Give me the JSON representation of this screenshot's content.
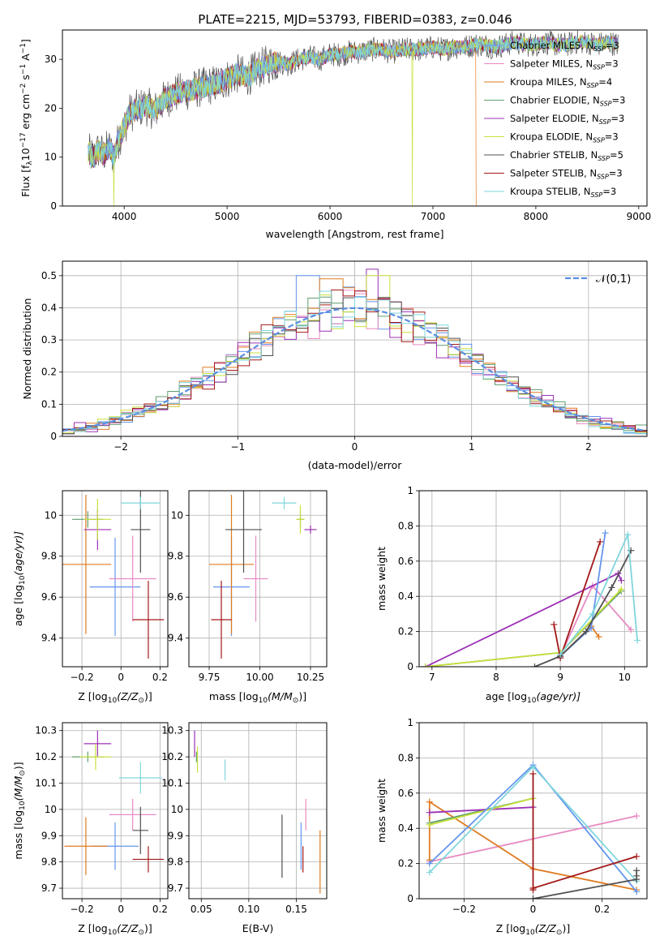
{
  "figure_title": "PLATE=2215, MJD=53793, FIBERID=0383, z=0.046",
  "model_colors": {
    "Chabrier MILES": "#6495ed",
    "Salpeter MILES": "#e78ac3",
    "Kroupa MILES": "#e07b20",
    "Chabrier ELODIE": "#5f9e6e",
    "Salpeter ELODIE": "#9b30b5",
    "Kroupa ELODIE": "#c9e03c",
    "Chabrier STELIB": "#505050",
    "Salpeter STELIB": "#a31818",
    "Kroupa STELIB": "#7fd6dc"
  },
  "chart_data": [
    {
      "id": "spectrum",
      "type": "line",
      "xlabel": "wavelength [Angstrom, rest frame]",
      "ylabel_main": "Flux [f",
      "ylabel_lambda": "λ",
      "ylabel_pre": "10",
      "ylabel_exp1": "−17",
      "ylabel_mid": " erg cm",
      "ylabel_exp2": "−2",
      "ylabel_mid2": " s",
      "ylabel_exp3": "−1",
      "ylabel_end": " A",
      "ylabel_exp4": "−1",
      "ylabel_close": "]",
      "xlim": [
        3400,
        9080
      ],
      "ylim": [
        0,
        36
      ],
      "xticks": [
        4000,
        5000,
        6000,
        7000,
        8000,
        9000
      ],
      "yticks": [
        0,
        10,
        20,
        30
      ],
      "profile_x": [
        3650,
        3700,
        3750,
        3800,
        3850,
        3900,
        3950,
        4000,
        4050,
        4100,
        4200,
        4300,
        4400,
        4500,
        4600,
        4700,
        4800,
        4900,
        5000,
        5100,
        5200,
        5300,
        5400,
        5500,
        5600,
        5700,
        5800,
        5900,
        6000,
        6100,
        6200,
        6300,
        6400,
        6500,
        6600,
        6700,
        6800,
        6900,
        7000,
        7100,
        7200,
        7300,
        7400,
        7500,
        7600,
        7700,
        7800,
        7900,
        8000,
        8100,
        8200,
        8300,
        8400,
        8500,
        8600,
        8700,
        8800
      ],
      "profile_y": [
        11,
        10,
        11.5,
        10.5,
        12,
        10,
        14,
        16,
        19,
        19.5,
        20.5,
        19.5,
        22,
        23,
        23.5,
        24,
        24.5,
        25,
        26,
        27,
        26.5,
        28,
        29,
        29.5,
        29,
        30,
        30.5,
        30,
        31,
        31,
        31.5,
        31.5,
        32,
        32,
        31.5,
        32,
        32,
        32,
        32.5,
        32,
        32.5,
        32.5,
        33,
        33,
        32.5,
        33,
        33.5,
        33,
        33,
        33.5,
        33,
        33,
        33.5,
        33.5,
        33,
        33.5,
        33
      ],
      "legend_placement": "upper right",
      "legend_entries": [
        {
          "model": "Chabrier MILES",
          "label": "Chabrier MILES, N",
          "sub": "SSP",
          "suffix": "=3"
        },
        {
          "model": "Salpeter MILES",
          "label": "Salpeter MILES, N",
          "sub": "SSP",
          "suffix": "=3"
        },
        {
          "model": "Kroupa MILES",
          "label": "Kroupa MILES, N",
          "sub": "SSP",
          "suffix": "=4"
        },
        {
          "model": "Chabrier ELODIE",
          "label": "Chabrier ELODIE, N",
          "sub": "SSP",
          "suffix": "=3"
        },
        {
          "model": "Salpeter ELODIE",
          "label": "Salpeter ELODIE, N",
          "sub": "SSP",
          "suffix": "=3"
        },
        {
          "model": "Kroupa ELODIE",
          "label": "Kroupa ELODIE, N",
          "sub": "SSP",
          "suffix": "=3"
        },
        {
          "model": "Chabrier STELIB",
          "label": "Chabrier STELIB, N",
          "sub": "SSP",
          "suffix": "=5"
        },
        {
          "model": "Salpeter STELIB",
          "label": "Salpeter STELIB, N",
          "sub": "SSP",
          "suffix": "=3"
        },
        {
          "model": "Kroupa STELIB",
          "label": "Kroupa STELIB, N",
          "sub": "SSP",
          "suffix": "=3"
        }
      ],
      "drops": [
        {
          "model": "Kroupa ELODIE",
          "x": 3900
        },
        {
          "model": "Kroupa ELODIE",
          "x": 6800
        },
        {
          "model": "Kroupa MILES",
          "x": 7420
        }
      ]
    },
    {
      "id": "residuals",
      "type": "histogram",
      "xlabel": "(data-model)/error",
      "ylabel": "Normed distribution",
      "xlim": [
        -2.5,
        2.5
      ],
      "ylim": [
        0,
        0.545
      ],
      "xticks": [
        -2,
        -1,
        0,
        1,
        2
      ],
      "yticks": [
        0.0,
        0.1,
        0.2,
        0.3,
        0.4,
        0.5
      ],
      "grid": true,
      "bin_width": 0.1,
      "reference_curve": {
        "label": "𝒩(0,1)",
        "color": "#5b8ee0",
        "style": "dashed",
        "legend_placement": "upper right"
      },
      "peak_adjust": [
        {
          "model": "Salpeter ELODIE",
          "x": 0.15,
          "y": 0.52
        },
        {
          "model": "Kroupa ELODIE",
          "x": 0.2,
          "y": 0.5
        },
        {
          "model": "Chabrier MILES",
          "x": -0.4,
          "y": 0.5
        },
        {
          "model": "Kroupa MILES",
          "x": -0.2,
          "y": 0.49
        }
      ]
    },
    {
      "id": "age-vs-Z",
      "type": "errorbar",
      "xlabel": "Z [log",
      "xlabel_sub": "10",
      "xlabel_arg": "(Z/Z",
      "xlabel_sun": "⊙",
      "xlabel_close": ")]",
      "ylabel": "age  [log",
      "ylabel_sub": "10",
      "ylabel_arg": "(age/yr)]",
      "xlim": [
        -0.3,
        0.24
      ],
      "ylim": [
        9.26,
        10.12
      ],
      "xticks": [
        -0.2,
        0.0,
        0.2
      ],
      "yticks": [
        9.4,
        9.6,
        9.8,
        10.0
      ],
      "points": [
        {
          "model": "Chabrier MILES",
          "x": -0.03,
          "y": 9.65,
          "xerr": 0.13,
          "yerr": 0.24
        },
        {
          "model": "Salpeter MILES",
          "x": 0.06,
          "y": 9.69,
          "xerr": 0.12,
          "yerr": 0.21
        },
        {
          "model": "Kroupa MILES",
          "x": -0.18,
          "y": 9.76,
          "xerr": 0.13,
          "yerr": 0.34
        },
        {
          "model": "Chabrier ELODIE",
          "x": -0.17,
          "y": 9.98,
          "xerr": 0.08,
          "yerr": 0.04
        },
        {
          "model": "Salpeter ELODIE",
          "x": -0.12,
          "y": 9.93,
          "xerr": 0.07,
          "yerr": 0.1
        },
        {
          "model": "Kroupa ELODIE",
          "x": -0.12,
          "y": 9.98,
          "xerr": 0.07,
          "yerr": 0.1
        },
        {
          "model": "Chabrier STELIB",
          "x": 0.1,
          "y": 9.93,
          "xerr": 0.05,
          "yerr": 0.21
        },
        {
          "model": "Salpeter STELIB",
          "x": 0.14,
          "y": 9.49,
          "xerr": 0.08,
          "yerr": 0.19
        },
        {
          "model": "Kroupa STELIB",
          "x": 0.1,
          "y": 10.06,
          "xerr": 0.1,
          "yerr": 0.03
        }
      ]
    },
    {
      "id": "age-vs-mass",
      "type": "errorbar",
      "xlabel": "mass [log",
      "xlabel_sub": "10",
      "xlabel_arg": "(M/M",
      "xlabel_sun": "⊙",
      "xlabel_close": ")]",
      "xlim": [
        9.65,
        10.33
      ],
      "ylim": [
        9.26,
        10.12
      ],
      "xticks": [
        9.75,
        10.0,
        10.25
      ],
      "tick_labels_x": [
        "9.75",
        "10.00",
        "10.25"
      ],
      "yticks": [
        9.4,
        9.6,
        9.8,
        10.0
      ],
      "points": [
        {
          "model": "Chabrier MILES",
          "x": 9.86,
          "y": 9.65,
          "xerr": 0.09,
          "yerr": 0.24
        },
        {
          "model": "Salpeter MILES",
          "x": 9.98,
          "y": 9.69,
          "xerr": 0.06,
          "yerr": 0.21
        },
        {
          "model": "Kroupa MILES",
          "x": 9.86,
          "y": 9.76,
          "xerr": 0.11,
          "yerr": 0.34
        },
        {
          "model": "Chabrier ELODIE",
          "x": 10.2,
          "y": 9.98,
          "xerr": 0.02,
          "yerr": 0.04
        },
        {
          "model": "Salpeter ELODIE",
          "x": 10.25,
          "y": 9.93,
          "xerr": 0.03,
          "yerr": 0.02
        },
        {
          "model": "Kroupa ELODIE",
          "x": 10.2,
          "y": 9.98,
          "xerr": 0.02,
          "yerr": 0.07
        },
        {
          "model": "Chabrier STELIB",
          "x": 9.92,
          "y": 9.93,
          "xerr": 0.09,
          "yerr": 0.21
        },
        {
          "model": "Salpeter STELIB",
          "x": 9.81,
          "y": 9.49,
          "xerr": 0.05,
          "yerr": 0.19
        },
        {
          "model": "Kroupa STELIB",
          "x": 10.12,
          "y": 10.06,
          "xerr": 0.06,
          "yerr": 0.03
        }
      ]
    },
    {
      "id": "massweight-vs-age",
      "type": "line",
      "xlabel": "age  [log",
      "xlabel_sub": "10",
      "xlabel_arg": "(age/yr)]",
      "ylabel": "mass weight",
      "xlim": [
        6.8,
        10.35
      ],
      "ylim": [
        0,
        1.0
      ],
      "xticks": [
        7,
        8,
        9,
        10
      ],
      "yticks": [
        0.0,
        0.2,
        0.4,
        0.6,
        0.8,
        1.0
      ],
      "series": [
        {
          "model": "Salpeter MILES",
          "x": [
            9.0,
            9.5,
            10.1
          ],
          "y": [
            0.06,
            0.46,
            0.21
          ]
        },
        {
          "model": "Chabrier ELODIE",
          "x": [
            6.9,
            9.0,
            9.95
          ],
          "y": [
            0.0,
            0.08,
            0.43
          ]
        },
        {
          "model": "Salpeter ELODIE",
          "x": [
            6.9,
            9.9,
            9.95
          ],
          "y": [
            0.0,
            0.53,
            0.49
          ]
        },
        {
          "model": "Kroupa ELODIE",
          "x": [
            6.9,
            9.0,
            9.95
          ],
          "y": [
            0.0,
            0.08,
            0.44
          ]
        },
        {
          "model": "Kroupa MILES",
          "x": [
            9.0,
            9.48,
            9.6
          ],
          "y": [
            0.06,
            0.23,
            0.17
          ]
        },
        {
          "model": "Chabrier MILES",
          "x": [
            9.0,
            9.48,
            9.7
          ],
          "y": [
            0.06,
            0.22,
            0.76
          ]
        },
        {
          "model": "Salpeter STELIB",
          "x": [
            8.9,
            9.0,
            9.62
          ],
          "y": [
            0.24,
            0.05,
            0.71
          ]
        },
        {
          "model": "Chabrier STELIB",
          "x": [
            8.6,
            9.0,
            9.4,
            9.8,
            10.1
          ],
          "y": [
            0.0,
            0.06,
            0.2,
            0.45,
            0.66
          ]
        },
        {
          "model": "Kroupa STELIB",
          "x": [
            9.0,
            9.5,
            10.05,
            10.2
          ],
          "y": [
            0.07,
            0.3,
            0.75,
            0.15
          ]
        }
      ]
    },
    {
      "id": "mass-vs-Z",
      "type": "errorbar",
      "xlabel": "Z [log",
      "xlabel_sub": "10",
      "xlabel_arg": "(Z/Z",
      "xlabel_sun": "⊙",
      "xlabel_close": ")]",
      "ylabel": "mass [log",
      "ylabel_sub": "10",
      "ylabel_arg": "(M/M",
      "ylabel_sun": "⊙",
      "ylabel_close": ")]",
      "xlim": [
        -0.3,
        0.24
      ],
      "ylim": [
        9.66,
        10.33
      ],
      "xticks": [
        -0.2,
        0.0,
        0.2
      ],
      "yticks": [
        9.7,
        9.8,
        9.9,
        10.0,
        10.1,
        10.2,
        10.3
      ],
      "points": [
        {
          "model": "Chabrier MILES",
          "x": -0.03,
          "y": 9.86,
          "xerr": 0.12,
          "yerr": 0.09
        },
        {
          "model": "Salpeter MILES",
          "x": 0.06,
          "y": 9.98,
          "xerr": 0.12,
          "yerr": 0.06
        },
        {
          "model": "Kroupa MILES",
          "x": -0.18,
          "y": 9.86,
          "xerr": 0.11,
          "yerr": 0.11
        },
        {
          "model": "Chabrier ELODIE",
          "x": -0.17,
          "y": 10.2,
          "xerr": 0.08,
          "yerr": 0.02
        },
        {
          "model": "Salpeter ELODIE",
          "x": -0.12,
          "y": 10.25,
          "xerr": 0.07,
          "yerr": 0.05
        },
        {
          "model": "Kroupa ELODIE",
          "x": -0.13,
          "y": 10.2,
          "xerr": 0.08,
          "yerr": 0.05
        },
        {
          "model": "Chabrier STELIB",
          "x": 0.1,
          "y": 9.92,
          "xerr": 0.04,
          "yerr": 0.09
        },
        {
          "model": "Salpeter STELIB",
          "x": 0.14,
          "y": 9.81,
          "xerr": 0.08,
          "yerr": 0.05
        },
        {
          "model": "Kroupa STELIB",
          "x": 0.1,
          "y": 10.12,
          "xerr": 0.11,
          "yerr": 0.06
        }
      ]
    },
    {
      "id": "mass-vs-EBV",
      "type": "errorbar",
      "xlabel": "E(B-V)",
      "xlim": [
        0.037,
        0.182
      ],
      "ylim": [
        9.66,
        10.33
      ],
      "xticks": [
        0.05,
        0.1,
        0.15
      ],
      "tick_labels_x": [
        "0.05",
        "0.10",
        "0.15"
      ],
      "yticks": [
        9.7,
        9.8,
        9.9,
        10.0,
        10.1,
        10.2,
        10.3
      ],
      "points": [
        {
          "model": "Chabrier MILES",
          "x": 0.155,
          "y": 9.86,
          "xerr": 0,
          "yerr": 0.09
        },
        {
          "model": "Salpeter MILES",
          "x": 0.16,
          "y": 9.98,
          "xerr": 0,
          "yerr": 0.06
        },
        {
          "model": "Kroupa MILES",
          "x": 0.175,
          "y": 9.8,
          "xerr": 0,
          "yerr": 0.12
        },
        {
          "model": "Chabrier ELODIE",
          "x": 0.045,
          "y": 10.2,
          "xerr": 0,
          "yerr": 0.02
        },
        {
          "model": "Salpeter ELODIE",
          "x": 0.043,
          "y": 10.25,
          "xerr": 0,
          "yerr": 0.05
        },
        {
          "model": "Kroupa ELODIE",
          "x": 0.046,
          "y": 10.19,
          "xerr": 0,
          "yerr": 0.05
        },
        {
          "model": "Chabrier STELIB",
          "x": 0.135,
          "y": 9.86,
          "xerr": 0,
          "yerr": 0.12
        },
        {
          "model": "Salpeter STELIB",
          "x": 0.157,
          "y": 9.81,
          "xerr": 0,
          "yerr": 0.05
        },
        {
          "model": "Kroupa STELIB",
          "x": 0.075,
          "y": 10.15,
          "xerr": 0,
          "yerr": 0.04
        }
      ]
    },
    {
      "id": "massweight-vs-Z",
      "type": "line",
      "xlabel": "Z [log",
      "xlabel_sub": "10",
      "xlabel_arg": "(Z/Z",
      "xlabel_sun": "⊙",
      "xlabel_close": ")]",
      "ylabel": "mass weight",
      "xlim": [
        -0.33,
        0.33
      ],
      "ylim": [
        0,
        1.0
      ],
      "xticks": [
        -0.2,
        0.0,
        0.2
      ],
      "yticks": [
        0.0,
        0.2,
        0.4,
        0.6,
        0.8,
        1.0
      ],
      "series": [
        {
          "model": "Salpeter MILES",
          "x": [
            -0.3,
            0.3
          ],
          "y": [
            0.21,
            0.47
          ]
        },
        {
          "model": "Kroupa MILES",
          "x": [
            -0.3,
            -0.3,
            0.0,
            0.3
          ],
          "y": [
            0.22,
            0.55,
            0.17,
            0.05
          ]
        },
        {
          "model": "Chabrier ELODIE",
          "x": [
            -0.3,
            0.0
          ],
          "y": [
            0.43,
            0.57
          ]
        },
        {
          "model": "Salpeter ELODIE",
          "x": [
            -0.3,
            0.0
          ],
          "y": [
            0.49,
            0.52
          ]
        },
        {
          "model": "Kroupa ELODIE",
          "x": [
            -0.3,
            0.0
          ],
          "y": [
            0.42,
            0.57
          ]
        },
        {
          "model": "Chabrier MILES",
          "x": [
            -0.3,
            0.0,
            0.3
          ],
          "y": [
            0.2,
            0.76,
            0.04
          ]
        },
        {
          "model": "Kroupa STELIB",
          "x": [
            -0.3,
            0.0,
            0.3
          ],
          "y": [
            0.15,
            0.75,
            0.1
          ]
        },
        {
          "model": "Salpeter STELIB",
          "x": [
            0.0,
            0.0,
            0.0,
            0.3
          ],
          "y": [
            0.71,
            0.05,
            0.06,
            0.24
          ]
        },
        {
          "model": "Chabrier STELIB",
          "x": [
            0.0,
            0.3,
            0.3,
            0.3
          ],
          "y": [
            0.0,
            0.11,
            0.13,
            0.16
          ]
        }
      ]
    }
  ]
}
